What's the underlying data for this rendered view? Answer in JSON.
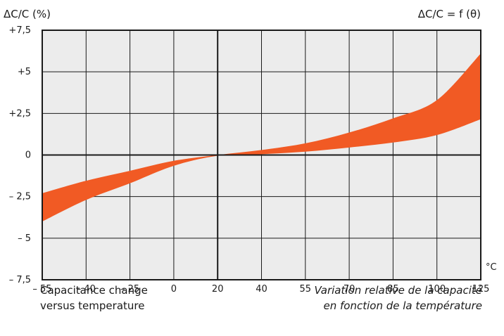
{
  "chart_data": {
    "type": "area",
    "title_left": "ΔC/C (%)",
    "title_right": "ΔC/C = f (θ)",
    "x_unit": "°C",
    "x_ticks": [
      {
        "value": -55,
        "label": "– 55"
      },
      {
        "value": -40,
        "label": "– 40"
      },
      {
        "value": -25,
        "label": "– 25"
      },
      {
        "value": 0,
        "label": "0"
      },
      {
        "value": 20,
        "label": "20"
      },
      {
        "value": 40,
        "label": "40"
      },
      {
        "value": 55,
        "label": "55"
      },
      {
        "value": 70,
        "label": "70"
      },
      {
        "value": 85,
        "label": "85"
      },
      {
        "value": 100,
        "label": "100"
      },
      {
        "value": 125,
        "label": "125"
      }
    ],
    "y_ticks": [
      {
        "value": 7.5,
        "label": "+7,5"
      },
      {
        "value": 5,
        "label": "+5"
      },
      {
        "value": 2.5,
        "label": "+2,5"
      },
      {
        "value": 0,
        "label": "0"
      },
      {
        "value": -2.5,
        "label": "– 2,5"
      },
      {
        "value": -5,
        "label": "– 5"
      },
      {
        "value": -7.5,
        "label": "– 7,5"
      }
    ],
    "ylim": [
      -7.5,
      7.5
    ],
    "grid": true,
    "band_color": "#f15a24",
    "upper": [
      {
        "x": -55,
        "y": -2.3
      },
      {
        "x": -40,
        "y": -1.55
      },
      {
        "x": -25,
        "y": -0.95
      },
      {
        "x": 0,
        "y": -0.35
      },
      {
        "x": 20,
        "y": 0.0
      },
      {
        "x": 40,
        "y": 0.3
      },
      {
        "x": 55,
        "y": 0.7
      },
      {
        "x": 70,
        "y": 1.35
      },
      {
        "x": 85,
        "y": 2.2
      },
      {
        "x": 100,
        "y": 3.3
      },
      {
        "x": 125,
        "y": 6.1
      }
    ],
    "lower": [
      {
        "x": -55,
        "y": -4.0
      },
      {
        "x": -40,
        "y": -2.7
      },
      {
        "x": -25,
        "y": -1.7
      },
      {
        "x": 0,
        "y": -0.65
      },
      {
        "x": 20,
        "y": -0.05
      },
      {
        "x": 40,
        "y": 0.05
      },
      {
        "x": 55,
        "y": 0.2
      },
      {
        "x": 70,
        "y": 0.45
      },
      {
        "x": 85,
        "y": 0.75
      },
      {
        "x": 100,
        "y": 1.2
      },
      {
        "x": 125,
        "y": 2.15
      }
    ]
  },
  "caption_en": [
    "Capacitance change",
    "versus temperature"
  ],
  "caption_fr": [
    "Variation relative de la capacité",
    "en fonction de la température"
  ]
}
